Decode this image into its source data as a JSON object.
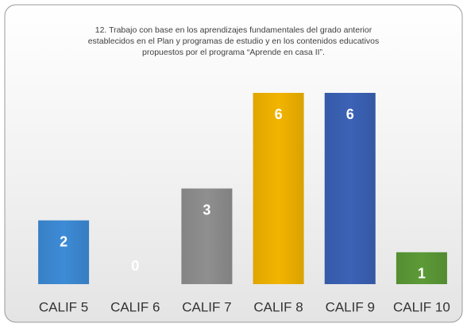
{
  "chart_data": {
    "type": "bar",
    "title": [
      "12. Trabajo con base en los aprendizajes fundamentales del grado anterior",
      "establecidos en el Plan y programas de estudio y en los contenidos educativos",
      "propuestos por el programa “Aprende en casa II”."
    ],
    "categories": [
      "CALIF 5",
      "CALIF 6",
      "CALIF 7",
      "CALIF 8",
      "CALIF 9",
      "CALIF 10"
    ],
    "values": [
      2,
      0,
      3,
      6,
      6,
      1
    ],
    "colors": [
      "#3d8bd6",
      "#e9e9e9",
      "#8f8f8f",
      "#f2b400",
      "#3b62b6",
      "#5c9a37"
    ]
  }
}
